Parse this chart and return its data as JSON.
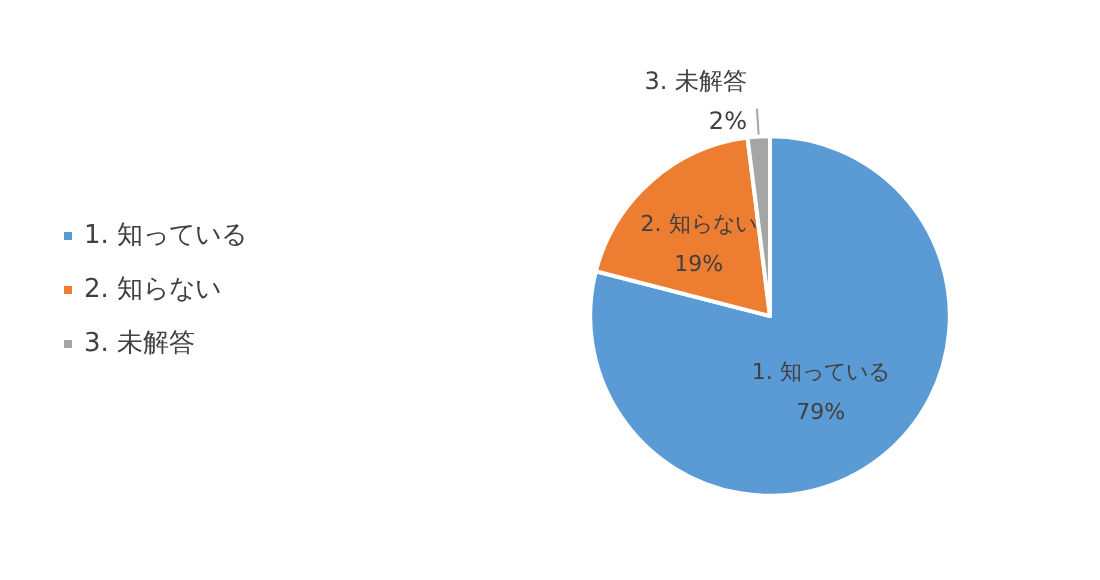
{
  "chart_data": {
    "type": "pie",
    "categories": [
      "1. 知っている",
      "2. 知らない",
      "3. 未解答"
    ],
    "values": [
      79,
      19,
      2
    ],
    "value_labels": [
      "79%",
      "19%",
      "2%"
    ],
    "colors": [
      "#5b9bd5",
      "#ed7d31",
      "#a5a5a5"
    ],
    "legend": "left"
  }
}
